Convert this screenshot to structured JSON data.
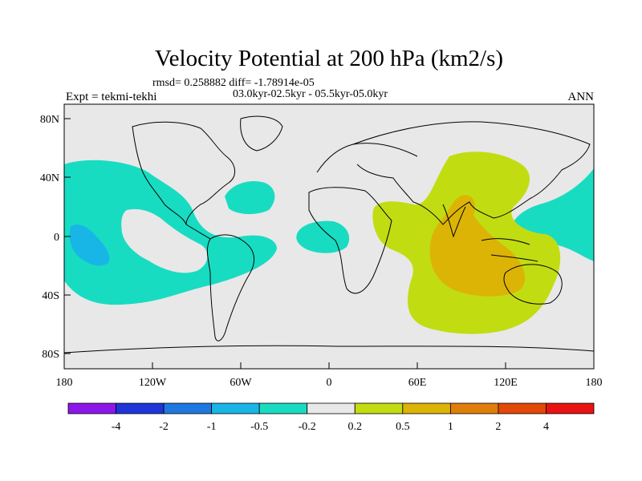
{
  "title": "Velocity Potential at 200 hPa (km2/s)",
  "stats": "rmsd= 0.258882 diff= -1.78914e-05",
  "period": "03.0kyr-02.5kyr - 05.5kyr-05.0kyr",
  "left_label": "Expt = tekmi-tekhi",
  "right_label": "ANN",
  "lat_ticks": [
    "80N",
    "40N",
    "0",
    "40S",
    "80S"
  ],
  "lon_ticks": [
    "180",
    "120W",
    "60W",
    "0",
    "60E",
    "120E",
    "180"
  ],
  "colorbar": {
    "labels": [
      "-4",
      "-2",
      "-1",
      "-0.5",
      "-0.2",
      "0.2",
      "0.5",
      "1",
      "2",
      "4"
    ],
    "colors": [
      "#8b17e8",
      "#1f35d8",
      "#1f78e0",
      "#18b6e6",
      "#18dcc2",
      "#e8e8e8",
      "#c2dc12",
      "#dcb406",
      "#e07e0c",
      "#e24808",
      "#e81212"
    ]
  },
  "field_colors": {
    "background": "#e8e8e8",
    "negative_small": "#18dcc2",
    "negative_medium": "#18b6e6",
    "positive_small": "#c2dc12",
    "positive_medium": "#dcb406"
  }
}
